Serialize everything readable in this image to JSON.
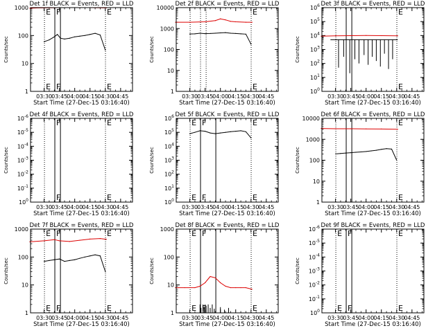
{
  "figure": {
    "xlabel": "Start Time (27-Dec-15 03:16:40)",
    "ylabel": "Counts/sec",
    "xticks": [
      "03:30",
      "03:45",
      "04:00",
      "04:15",
      "04:30",
      "04:45"
    ],
    "colors": {
      "events": "#000000",
      "lld": "#dd0000"
    }
  },
  "chart_data": [
    {
      "id": "1f",
      "type": "line",
      "title": "Det 1f BLACK = Events, RED = LLD",
      "log": true,
      "ylim": [
        1,
        1000
      ],
      "yticks": [
        "1",
        "10",
        "100",
        "1000"
      ],
      "markers": [
        {
          "label": "E",
          "t": "03:30:20",
          "solid": false
        },
        {
          "label": "F",
          "t": "03:40:30",
          "solid": true
        },
        {
          "label": "",
          "t": "03:46:00",
          "solid": true
        },
        {
          "label": "E",
          "t": "04:30:10",
          "solid": false
        }
      ],
      "series": [
        {
          "name": "Events",
          "color": "events",
          "style": "line",
          "x": [
            "03:30",
            "03:35",
            "03:40",
            "03:43",
            "03:46",
            "03:50",
            "03:55",
            "04:00",
            "04:05",
            "04:10",
            "04:15",
            "04:20",
            "04:25",
            "04:30"
          ],
          "y": [
            60,
            70,
            90,
            110,
            80,
            75,
            80,
            90,
            95,
            100,
            110,
            120,
            105,
            30
          ]
        },
        {
          "name": "LLD",
          "color": "lld",
          "style": "line",
          "x": [
            "03:16",
            "03:25",
            "03:35",
            "03:45",
            "03:55",
            "04:05",
            "04:15",
            "04:25",
            "04:31"
          ],
          "y": [
            950,
            980,
            990,
            1000,
            1010,
            1020,
            1000,
            990,
            980
          ]
        }
      ]
    },
    {
      "id": "2f",
      "type": "line",
      "title": "Det 2f BLACK = Events, RED = LLD",
      "log": true,
      "ylim": [
        1,
        10000
      ],
      "yticks": [
        "1",
        "10",
        "100",
        "1000",
        "10000"
      ],
      "markers": [
        {
          "label": "",
          "t": "03:30:20",
          "solid": false
        },
        {
          "label": "",
          "t": "03:40:30",
          "solid": false
        },
        {
          "label": "",
          "t": "03:46:00",
          "solid": false
        },
        {
          "label": "E",
          "t": "04:30:10",
          "solid": false
        }
      ],
      "series": [
        {
          "name": "Events",
          "color": "events",
          "style": "line",
          "x": [
            "03:30",
            "03:35",
            "03:40",
            "03:45",
            "03:50",
            "03:55",
            "04:00",
            "04:05",
            "04:10",
            "04:15",
            "04:20",
            "04:25",
            "04:30"
          ],
          "y": [
            550,
            560,
            600,
            570,
            580,
            600,
            620,
            640,
            600,
            580,
            560,
            540,
            180
          ]
        },
        {
          "name": "LLD",
          "color": "lld",
          "style": "line",
          "x": [
            "03:16",
            "03:30",
            "03:45",
            "03:55",
            "04:00",
            "04:05",
            "04:10",
            "04:15",
            "04:25",
            "04:31"
          ],
          "y": [
            2000,
            2000,
            2100,
            2400,
            2900,
            2600,
            2200,
            2100,
            2000,
            2000
          ]
        }
      ]
    },
    {
      "id": "3f",
      "type": "line",
      "title": "Det 3f BLACK = Events, RED = LLD",
      "log": true,
      "ylim": [
        1,
        1000000
      ],
      "yticks": [
        "10^0",
        "10^1",
        "10^2",
        "10^3",
        "10^4",
        "10^5",
        "10^6"
      ],
      "markers": [
        {
          "label": "",
          "t": "03:30:20",
          "solid": false
        },
        {
          "label": "",
          "t": "03:40:30",
          "solid": true
        },
        {
          "label": "",
          "t": "03:46:00",
          "solid": true
        },
        {
          "label": "E",
          "t": "04:30:10",
          "solid": false
        }
      ],
      "series": [
        {
          "name": "Events",
          "color": "events",
          "style": "spiky",
          "x": [
            "03:25",
            "04:31"
          ],
          "y": [
            5000,
            5000
          ],
          "dips": [
            {
              "t": "03:33",
              "y": 50
            },
            {
              "t": "03:38",
              "y": 300
            },
            {
              "t": "03:44",
              "y": 20
            },
            {
              "t": "03:49",
              "y": 200
            },
            {
              "t": "03:53",
              "y": 100
            },
            {
              "t": "03:58",
              "y": 400
            },
            {
              "t": "04:02",
              "y": 80
            },
            {
              "t": "04:06",
              "y": 300
            },
            {
              "t": "04:10",
              "y": 150
            },
            {
              "t": "04:14",
              "y": 60
            },
            {
              "t": "04:18",
              "y": 500
            },
            {
              "t": "04:22",
              "y": 40
            },
            {
              "t": "04:26",
              "y": 200
            }
          ]
        },
        {
          "name": "LLD",
          "color": "lld",
          "style": "line",
          "x": [
            "03:16",
            "03:30",
            "03:45",
            "04:00",
            "04:15",
            "04:31"
          ],
          "y": [
            9000,
            9500,
            9800,
            10000,
            9800,
            9500
          ]
        }
      ]
    },
    {
      "id": "4f",
      "type": "line",
      "title": "Det 4f BLACK = Events, RED = LLD",
      "log": true,
      "ylim": [
        1,
        1e-06
      ],
      "yticks": [
        "10^0",
        "10^-1",
        "10^-2",
        "10^-3",
        "10^-4",
        "10^-5",
        "10^-6"
      ],
      "markers": [
        {
          "label": "",
          "t": "03:30:20",
          "solid": false
        },
        {
          "label": "F",
          "t": "03:40:30",
          "solid": true
        },
        {
          "label": "",
          "t": "03:46:00",
          "solid": true
        },
        {
          "label": "E",
          "t": "04:30:10",
          "solid": false
        }
      ],
      "series": []
    },
    {
      "id": "5f",
      "type": "line",
      "title": "Det 5f BLACK = Events, RED = LLD",
      "log": true,
      "ylim": [
        1,
        1000000
      ],
      "yticks": [
        "10^0",
        "10^1",
        "10^2",
        "10^3",
        "10^4",
        "10^5",
        "10^6"
      ],
      "markers": [
        {
          "label": "E",
          "t": "03:30:20",
          "solid": false
        },
        {
          "label": "F",
          "t": "03:40:30",
          "solid": true
        },
        {
          "label": "",
          "t": "03:55:30",
          "solid": true
        },
        {
          "label": "E",
          "t": "04:30:10",
          "solid": false
        }
      ],
      "series": [
        {
          "name": "Events",
          "color": "events",
          "style": "line",
          "x": [
            "03:30",
            "03:35",
            "03:40",
            "03:45",
            "03:50",
            "03:55",
            "04:00",
            "04:05",
            "04:10",
            "04:15",
            "04:20",
            "04:25",
            "04:30"
          ],
          "y": [
            80000,
            100000,
            130000,
            120000,
            90000,
            80000,
            90000,
            100000,
            110000,
            120000,
            130000,
            110000,
            40000
          ]
        }
      ]
    },
    {
      "id": "6f",
      "type": "line",
      "title": "Det 6f BLACK = Events, RED = LLD",
      "log": true,
      "ylim": [
        1,
        10000
      ],
      "yticks": [
        "1",
        "10",
        "100",
        "1000",
        "10000"
      ],
      "markers": [
        {
          "label": "",
          "t": "03:30:20",
          "solid": false
        },
        {
          "label": "",
          "t": "03:40:30",
          "solid": true
        },
        {
          "label": "",
          "t": "03:46:00",
          "solid": true
        },
        {
          "label": "E",
          "t": "04:30:10",
          "solid": false
        }
      ],
      "series": [
        {
          "name": "Events",
          "color": "events",
          "style": "line",
          "x": [
            "03:30",
            "03:35",
            "03:40",
            "03:45",
            "03:50",
            "03:55",
            "04:00",
            "04:05",
            "04:10",
            "04:15",
            "04:20",
            "04:25",
            "04:30"
          ],
          "y": [
            200,
            210,
            220,
            230,
            240,
            250,
            260,
            280,
            300,
            330,
            360,
            340,
            100
          ]
        },
        {
          "name": "LLD",
          "color": "lld",
          "style": "line",
          "x": [
            "03:16",
            "03:30",
            "03:45",
            "04:00",
            "04:15",
            "04:31"
          ],
          "y": [
            3300,
            3200,
            3200,
            3150,
            3100,
            3000
          ]
        }
      ]
    },
    {
      "id": "7f",
      "type": "line",
      "title": "Det 7f BLACK = Events, RED = LLD",
      "log": true,
      "ylim": [
        1,
        1000
      ],
      "yticks": [
        "1",
        "10",
        "100",
        "1000"
      ],
      "markers": [
        {
          "label": "E",
          "t": "03:30:20",
          "solid": false
        },
        {
          "label": "F",
          "t": "03:40:30",
          "solid": true
        },
        {
          "label": "",
          "t": "03:46:00",
          "solid": true
        },
        {
          "label": "E",
          "t": "04:30:10",
          "solid": false
        }
      ],
      "series": [
        {
          "name": "Events",
          "color": "events",
          "style": "line",
          "x": [
            "03:30",
            "03:35",
            "03:40",
            "03:45",
            "03:50",
            "03:55",
            "04:00",
            "04:05",
            "04:10",
            "04:15",
            "04:20",
            "04:25",
            "04:30"
          ],
          "y": [
            70,
            75,
            80,
            85,
            70,
            75,
            80,
            90,
            100,
            110,
            120,
            110,
            30
          ]
        },
        {
          "name": "LLD",
          "color": "lld",
          "style": "line",
          "x": [
            "03:16",
            "03:30",
            "03:40",
            "03:45",
            "03:55",
            "04:05",
            "04:15",
            "04:25",
            "04:31"
          ],
          "y": [
            350,
            380,
            420,
            380,
            360,
            400,
            440,
            460,
            430
          ]
        }
      ]
    },
    {
      "id": "8f",
      "type": "line",
      "title": "Det 8f BLACK = Events, RED = LLD",
      "log": true,
      "ylim": [
        1,
        1000
      ],
      "yticks": [
        "1",
        "10",
        "100",
        "1000"
      ],
      "markers": [
        {
          "label": "E",
          "t": "03:30:20",
          "solid": false
        },
        {
          "label": "F",
          "t": "03:40:30",
          "solid": true
        },
        {
          "label": "",
          "t": "03:55:30",
          "solid": true
        },
        {
          "label": "E",
          "t": "04:30:10",
          "solid": false
        }
      ],
      "series": [
        {
          "name": "LLD",
          "color": "lld",
          "style": "line",
          "x": [
            "03:16",
            "03:25",
            "03:35",
            "03:40",
            "03:45",
            "03:50",
            "03:55",
            "04:00",
            "04:05",
            "04:10",
            "04:15",
            "04:20",
            "04:25",
            "04:31"
          ],
          "y": [
            8,
            8,
            8,
            9,
            12,
            20,
            18,
            12,
            9,
            8,
            8,
            8,
            8,
            7
          ]
        },
        {
          "name": "Events",
          "color": "events",
          "style": "spiky",
          "x": [
            "03:39",
            "04:10"
          ],
          "y": [
            1,
            1
          ],
          "up": [
            {
              "t": "03:40",
              "y": 2
            },
            {
              "t": "03:41",
              "y": 1.5
            },
            {
              "t": "03:43",
              "y": 2
            },
            {
              "t": "03:44",
              "y": 1.6
            },
            {
              "t": "03:45",
              "y": 2
            },
            {
              "t": "03:46",
              "y": 1.8
            },
            {
              "t": "03:48",
              "y": 2
            },
            {
              "t": "03:50",
              "y": 1.5
            },
            {
              "t": "03:52",
              "y": 2
            },
            {
              "t": "03:54",
              "y": 1.4
            },
            {
              "t": "04:00",
              "y": 1.6
            },
            {
              "t": "04:04",
              "y": 1.3
            },
            {
              "t": "04:08",
              "y": 1.5
            }
          ]
        }
      ]
    },
    {
      "id": "9f",
      "type": "line",
      "title": "Det 9f BLACK = Events, RED = LLD",
      "log": true,
      "ylim": [
        1,
        1e-06
      ],
      "yticks": [
        "10^0",
        "10^-1",
        "10^-2",
        "10^-3",
        "10^-4",
        "10^-5",
        "10^-6"
      ],
      "markers": [
        {
          "label": "E",
          "t": "03:30:20",
          "solid": false
        },
        {
          "label": "F",
          "t": "03:40:30",
          "solid": true
        },
        {
          "label": "",
          "t": "03:46:00",
          "solid": true
        },
        {
          "label": "E",
          "t": "04:30:10",
          "solid": false
        }
      ],
      "series": []
    }
  ]
}
